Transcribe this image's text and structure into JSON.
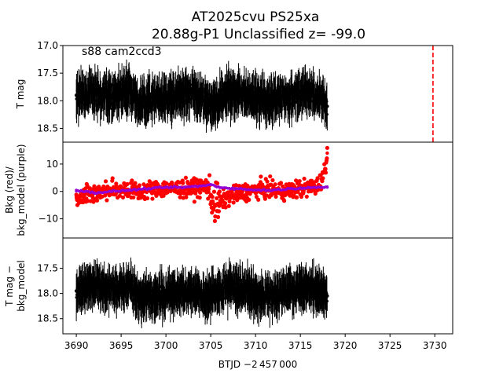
{
  "figure": {
    "title_line1": "AT2025cvu  PS25xa",
    "title_line2": "20.88g-P1 Unclassified z= -99.0",
    "xlabel": "BTJD −2 457 000",
    "xlim": [
      3688.5,
      3732.0
    ],
    "xticks": [
      "3690",
      "3695",
      "3700",
      "3705",
      "3710",
      "3715",
      "3720",
      "3725",
      "3730"
    ]
  },
  "chart_data": [
    {
      "type": "scatter",
      "panel": "top",
      "ylabel": "T mag",
      "annotation": "s88 cam2ccd3",
      "ylim": [
        18.75,
        17.0
      ],
      "y_inverted": true,
      "yticks": [
        "17.0",
        "17.5",
        "18.0",
        "18.5"
      ],
      "x_range": [
        3690.0,
        3718.0
      ],
      "series": [
        {
          "color": "#000000",
          "style": "points with error bars",
          "x": [
            3690,
            3692,
            3694,
            3696,
            3697,
            3699,
            3701,
            3703,
            3704.5,
            3705.5,
            3707,
            3709,
            3711,
            3713,
            3715,
            3717,
            3718
          ],
          "y": [
            17.9,
            17.85,
            17.95,
            17.8,
            18.05,
            17.95,
            17.9,
            17.85,
            18.0,
            18.1,
            17.85,
            17.9,
            18.0,
            17.95,
            17.85,
            17.9,
            18.1
          ]
        }
      ],
      "vline": {
        "x": 3729.8,
        "color": "#ff0000",
        "style": "dashed"
      }
    },
    {
      "type": "scatter",
      "panel": "middle",
      "ylabel": "Bkg (red)/\nbkg_model (purple)",
      "ylim": [
        -17,
        18
      ],
      "yticks": [
        "10",
        "0",
        "−10"
      ],
      "series": [
        {
          "color": "#ff0000",
          "x": [
            3690,
            3691,
            3693,
            3695,
            3697,
            3699,
            3701,
            3703,
            3704.5,
            3705.5,
            3707,
            3709,
            3711,
            3713,
            3715,
            3717,
            3717.8,
            3718
          ],
          "y": [
            -2,
            -1,
            0,
            1,
            0,
            1,
            1,
            1,
            2,
            -5,
            -2,
            0,
            1,
            0,
            1,
            2,
            8,
            14
          ]
        },
        {
          "color": "#9400d3",
          "x": [
            3690,
            3692,
            3694,
            3696,
            3698,
            3700,
            3702,
            3704,
            3705,
            3706,
            3708,
            3710,
            3712,
            3714,
            3716,
            3718
          ],
          "y": [
            0.5,
            -0.5,
            0.0,
            0.5,
            1.0,
            1.5,
            1.5,
            2.0,
            2.5,
            1.5,
            1.0,
            0.5,
            0.5,
            1.0,
            1.5,
            1.5
          ]
        }
      ]
    },
    {
      "type": "scatter",
      "panel": "bottom",
      "ylabel": "T mag −\nbkg_model",
      "ylim": [
        18.8,
        16.9
      ],
      "y_inverted": true,
      "yticks": [
        "17.5",
        "18.0",
        "18.5"
      ],
      "series": [
        {
          "color": "#000000",
          "style": "points with error bars",
          "x": [
            3690,
            3692,
            3694,
            3696,
            3697,
            3699,
            3701,
            3703,
            3704.5,
            3705.5,
            3707,
            3709,
            3711,
            3713,
            3715,
            3717,
            3718
          ],
          "y": [
            17.95,
            17.85,
            17.9,
            17.85,
            18.1,
            18.05,
            18.0,
            17.95,
            18.1,
            18.0,
            17.85,
            17.95,
            18.1,
            18.0,
            17.9,
            17.95,
            18.05
          ]
        }
      ]
    }
  ]
}
